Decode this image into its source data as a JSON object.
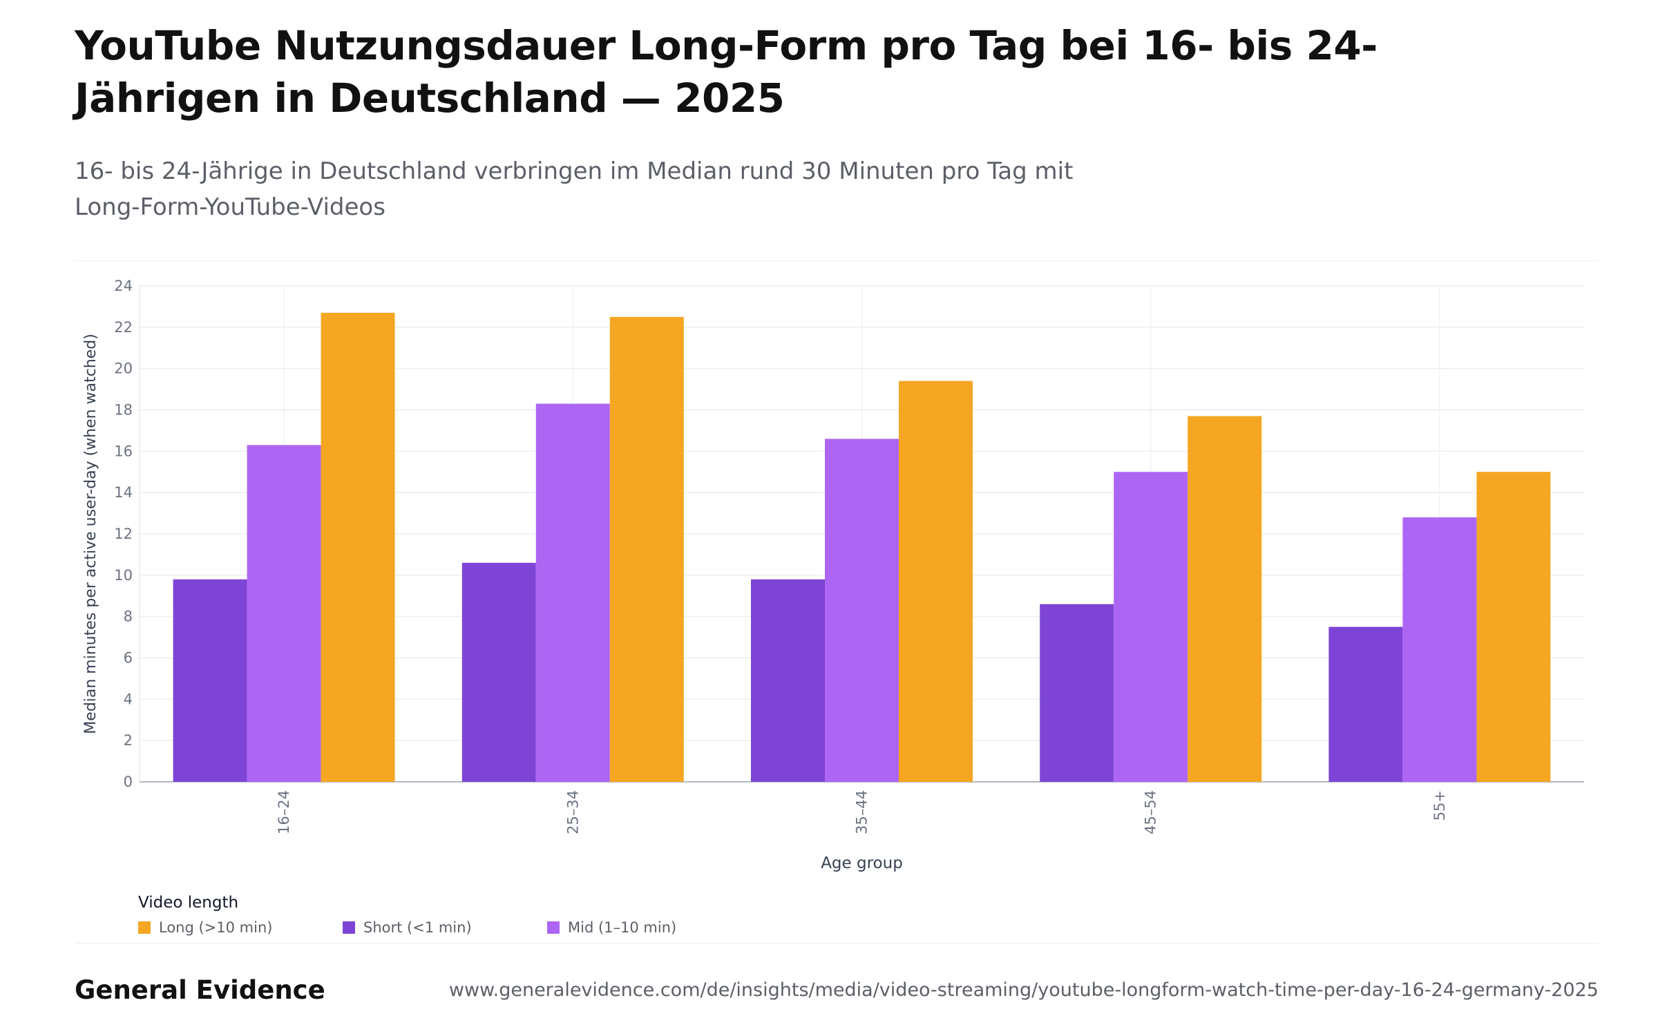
{
  "page": {
    "title": "YouTube Nutzungsdauer Long-Form pro Tag bei 16- bis 24-Jährigen in Deutschland — 2025",
    "subtitle": "16- bis 24-Jährige in Deutschland verbringen im Median rund 30 Minuten pro Tag mit Long-Form-YouTube-Videos",
    "brand": "General Evidence",
    "url": "www.generalevidence.com/de/insights/media/video-streaming/youtube-longform-watch-time-per-day-16-24-germany-2025"
  },
  "legend": {
    "title": "Video length",
    "items": [
      {
        "label": "Short (<1 min)",
        "color": "#7e44d6"
      },
      {
        "label": "Mid (1–10 min)",
        "color": "#ad66f4"
      },
      {
        "label": "Long (>10 min)",
        "color": "#f5a623"
      }
    ]
  },
  "chart_data": {
    "type": "bar",
    "title": "",
    "xlabel": "Age group",
    "ylabel": "Median minutes per active user-day (when watched)",
    "categories": [
      "16–24",
      "25–34",
      "35–44",
      "45–54",
      "55+"
    ],
    "ylim": [
      0,
      24
    ],
    "yticks": [
      "0",
      "2",
      "4",
      "6",
      "8",
      "10",
      "12",
      "14",
      "16",
      "18",
      "20",
      "22",
      "24"
    ],
    "grid": true,
    "legend_position": "bottom-left",
    "series": [
      {
        "name": "Short (<1 min)",
        "values": [
          9.8,
          10.6,
          9.8,
          8.6,
          7.5
        ],
        "color": "#7e44d6"
      },
      {
        "name": "Mid (1–10 min)",
        "values": [
          16.3,
          18.3,
          16.6,
          15.0,
          12.8
        ],
        "color": "#ad66f4"
      },
      {
        "name": "Long (>10 min)",
        "values": [
          22.7,
          22.5,
          19.4,
          17.7,
          15.0
        ],
        "color": "#f5a623"
      }
    ]
  }
}
